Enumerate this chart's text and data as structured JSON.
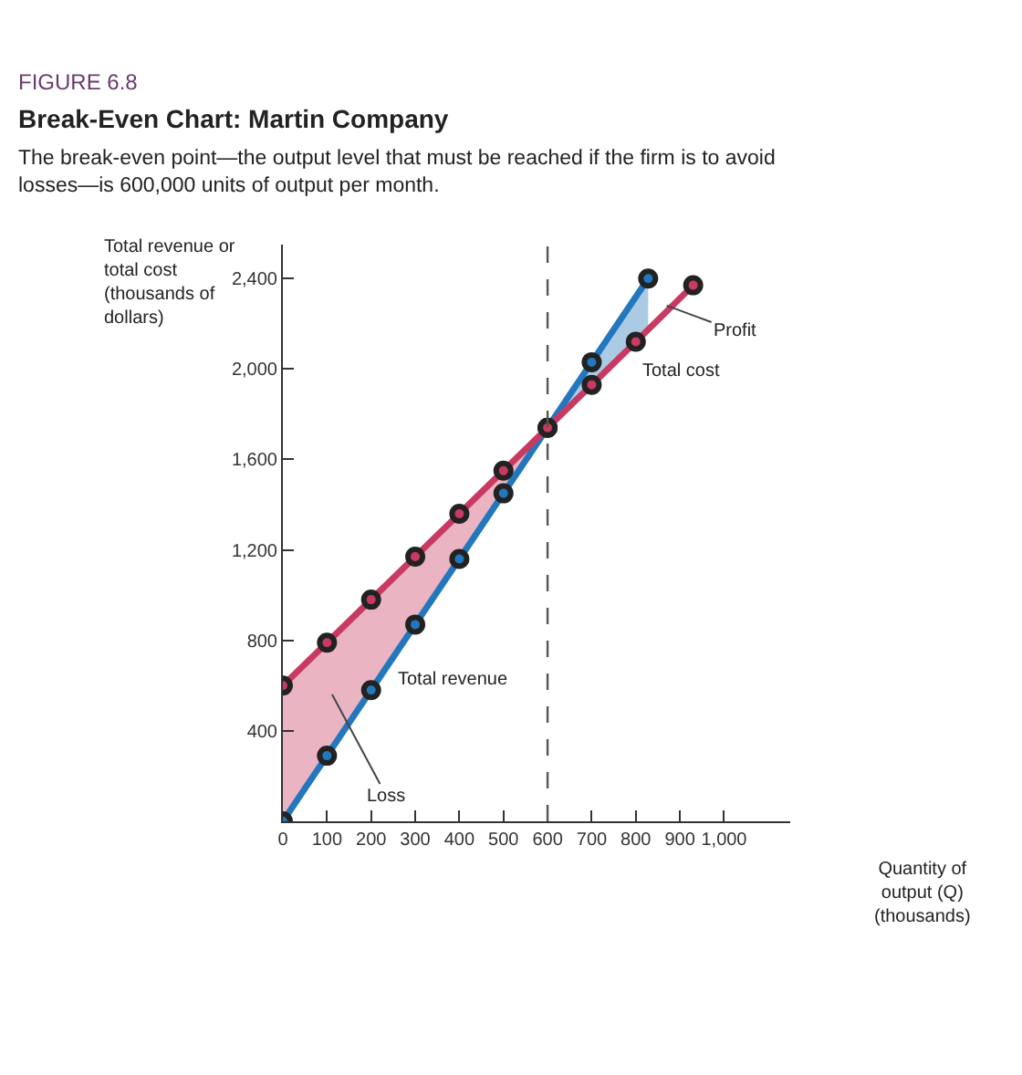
{
  "chart_data": {
    "type": "line",
    "title": "Break-Even Chart: Martin Company",
    "subtitle": "The break-even point—the output level that must be reached if the firm is to avoid losses—is 600,000 units of output per month.",
    "xlabel": "Quantity of output (Q) (thousands)",
    "ylabel": "Total revenue or total cost (thousands of dollars)",
    "series": [
      {
        "color": "#2377bd",
        "x": [
          0,
          100,
          200,
          300,
          400,
          500,
          600,
          700,
          828
        ],
        "values": [
          0,
          290,
          580,
          870,
          1160,
          1450,
          1740,
          2030,
          2400
        ],
        "lower": [
          null,
          null,
          null,
          null,
          null,
          null,
          1740,
          1930,
          2170
        ],
        "upper": [
          null,
          null,
          null,
          null,
          null,
          null,
          1740,
          2030,
          2400
        ]
      },
      {
        "color": "#c93a62",
        "x": [
          0,
          100,
          200,
          300,
          400,
          500,
          600,
          700,
          800,
          930
        ],
        "values": [
          600,
          790,
          980,
          1170,
          1360,
          1550,
          1740,
          1930,
          2120,
          2370
        ],
        "lower": [
          0,
          290,
          580,
          870,
          1160,
          1450,
          1740,
          null,
          null,
          null
        ],
        "upper": [
          600,
          790,
          980,
          1170,
          1360,
          1550,
          1740,
          null,
          null,
          null
        ]
      }
    ],
    "xlim": [
      0,
      1150
    ],
    "ylim": [
      0,
      2550
    ],
    "xticks": [
      0,
      100,
      200,
      300,
      400,
      500,
      600,
      700,
      800,
      900,
      {
        "value": 1000,
        "label": "1,000"
      }
    ],
    "yticks": [
      {
        "value": 400,
        "label": "400"
      },
      {
        "value": 800,
        "label": "800"
      },
      {
        "value": 1200,
        "label": "1,200"
      },
      {
        "value": 1600,
        "label": "1,600"
      },
      {
        "value": 2000,
        "label": "2,000"
      },
      {
        "value": 2400,
        "label": "2,400"
      }
    ],
    "ref_lines": [
      {
        "axis": "x",
        "value": 600,
        "color": "#555555",
        "line_style": "dashed"
      }
    ],
    "annotations": [
      "FIGURE 6.8",
      "Total revenue",
      "Total cost",
      {
        "text": "Profit",
        "x": 870,
        "y": 2280
      },
      "Loss"
    ],
    "marker": "circle",
    "line_style": "solid"
  }
}
